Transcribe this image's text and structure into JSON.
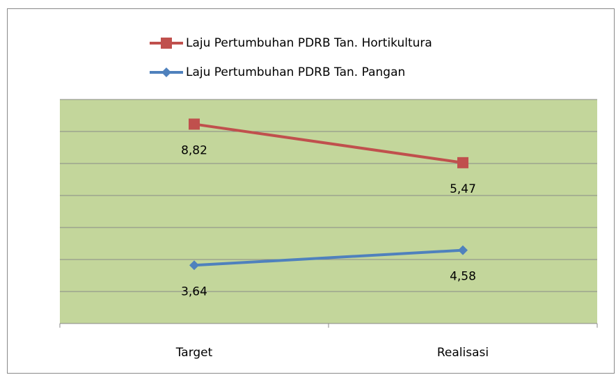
{
  "chart_data": {
    "type": "line",
    "stacked": true,
    "categories": [
      "Target",
      "Realisasi"
    ],
    "series": [
      {
        "name": "Laju Pertumbuhan PDRB Tan. Pangan",
        "color": "#4f81bd",
        "marker": "diamond",
        "values": [
          3.64,
          4.58
        ],
        "value_labels": [
          "3,64",
          "4,58"
        ]
      },
      {
        "name": "Laju Pertumbuhan PDRB Tan. Hortikultura",
        "color": "#c0504d",
        "marker": "square",
        "values": [
          8.82,
          5.47
        ],
        "value_labels": [
          "8,82",
          "5,47"
        ]
      }
    ],
    "ylim": [
      0,
      14
    ],
    "yticks": [
      0,
      2,
      4,
      6,
      8,
      10,
      12,
      14
    ],
    "grid": true,
    "legend": "top",
    "plot_background": "#c3d69b"
  }
}
